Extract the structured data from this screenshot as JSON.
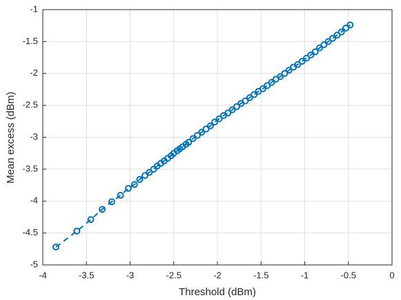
{
  "chart_data": {
    "type": "line",
    "xlabel": "Threshold (dBm)",
    "ylabel": "Mean excess (dBm)",
    "xlim": [
      -4,
      0
    ],
    "ylim": [
      -5,
      -1
    ],
    "xticks": [
      -4,
      -3.5,
      -3,
      -2.5,
      -2,
      -1.5,
      -1,
      -0.5,
      0
    ],
    "yticks": [
      -5,
      -4.5,
      -4,
      -3.5,
      -3,
      -2.5,
      -2,
      -1.5,
      -1
    ],
    "grid": true,
    "series": [
      {
        "color": "#0072BD",
        "line_style": "dashed",
        "marker": "circle",
        "x": [
          -3.85,
          -3.61,
          -3.45,
          -3.32,
          -3.21,
          -3.11,
          -3.02,
          -2.95,
          -2.89,
          -2.83,
          -2.78,
          -2.73,
          -2.69,
          -2.65,
          -2.61,
          -2.57,
          -2.53,
          -2.5,
          -2.46,
          -2.43,
          -2.4,
          -2.36,
          -2.33,
          -2.28,
          -2.23,
          -2.18,
          -2.13,
          -2.08,
          -2.03,
          -1.98,
          -1.93,
          -1.88,
          -1.83,
          -1.78,
          -1.73,
          -1.68,
          -1.63,
          -1.58,
          -1.53,
          -1.48,
          -1.43,
          -1.38,
          -1.33,
          -1.28,
          -1.23,
          -1.18,
          -1.13,
          -1.08,
          -1.03,
          -0.98,
          -0.93,
          -0.88,
          -0.83,
          -0.78,
          -0.73,
          -0.68,
          -0.63,
          -0.58,
          -0.53,
          -0.48
        ],
        "values": [
          -4.72,
          -4.47,
          -4.29,
          -4.13,
          -4.01,
          -3.91,
          -3.8,
          -3.74,
          -3.66,
          -3.6,
          -3.55,
          -3.5,
          -3.45,
          -3.41,
          -3.37,
          -3.33,
          -3.29,
          -3.25,
          -3.21,
          -3.18,
          -3.15,
          -3.11,
          -3.08,
          -3.02,
          -2.97,
          -2.92,
          -2.87,
          -2.82,
          -2.76,
          -2.71,
          -2.66,
          -2.62,
          -2.57,
          -2.52,
          -2.47,
          -2.43,
          -2.38,
          -2.33,
          -2.28,
          -2.24,
          -2.19,
          -2.14,
          -2.09,
          -2.05,
          -2.0,
          -1.95,
          -1.9,
          -1.86,
          -1.81,
          -1.76,
          -1.71,
          -1.66,
          -1.6,
          -1.55,
          -1.5,
          -1.45,
          -1.4,
          -1.35,
          -1.29,
          -1.24
        ]
      }
    ]
  }
}
